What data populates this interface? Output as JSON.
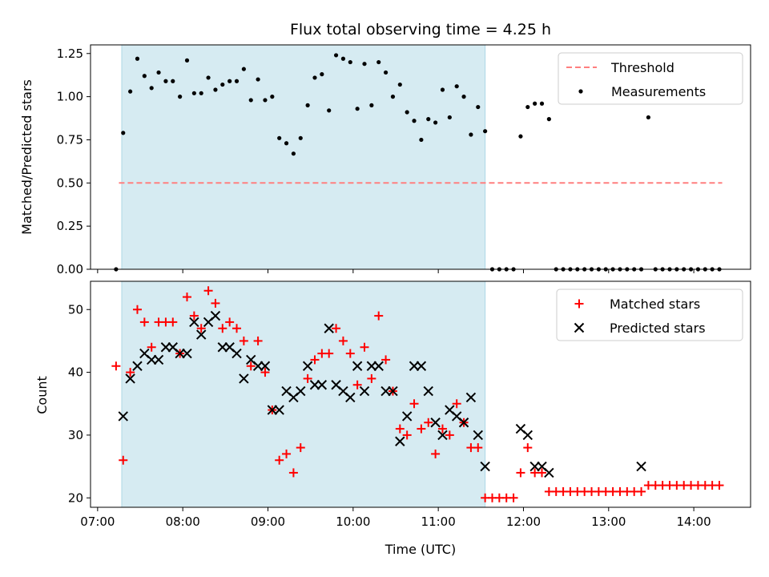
{
  "chart_data": {
    "title": "Flux total observing time = 4.25 h",
    "xlabel": "Time (UTC)",
    "x_ticks": [
      "07:00",
      "08:00",
      "09:00",
      "10:00",
      "11:00",
      "12:00",
      "13:00",
      "14:00"
    ],
    "x_range": [
      "06:55",
      "14:40"
    ],
    "shaded_interval": [
      "07:17",
      "11:33"
    ],
    "shade_color": "#add8e6",
    "panels": [
      {
        "type": "scatter",
        "ylabel": "Matched/Predicted stars",
        "ylim": [
          0,
          1.3
        ],
        "y_ticks": [
          "0.00",
          "0.25",
          "0.50",
          "0.75",
          "1.00",
          "1.25"
        ],
        "legend_position": "upper-right",
        "series": [
          {
            "name": "Threshold",
            "style": "dashed-line",
            "color": "#ff7f7f",
            "x": [
              "07:15",
              "14:20"
            ],
            "y": [
              0.5,
              0.5
            ]
          },
          {
            "name": "Measurements",
            "style": "dot",
            "color": "#000000",
            "x": [
              "07:13",
              "07:18",
              "07:23",
              "07:28",
              "07:33",
              "07:38",
              "07:43",
              "07:48",
              "07:53",
              "07:58",
              "08:03",
              "08:08",
              "08:13",
              "08:18",
              "08:23",
              "08:28",
              "08:33",
              "08:38",
              "08:43",
              "08:48",
              "08:53",
              "08:58",
              "09:03",
              "09:08",
              "09:13",
              "09:18",
              "09:23",
              "09:28",
              "09:33",
              "09:38",
              "09:43",
              "09:48",
              "09:53",
              "09:58",
              "10:03",
              "10:08",
              "10:13",
              "10:18",
              "10:23",
              "10:28",
              "10:33",
              "10:38",
              "10:43",
              "10:48",
              "10:53",
              "10:58",
              "11:03",
              "11:08",
              "11:13",
              "11:18",
              "11:23",
              "11:28",
              "11:33",
              "11:38",
              "11:43",
              "11:48",
              "11:53",
              "11:58",
              "12:03",
              "12:08",
              "12:13",
              "12:18",
              "12:23",
              "12:28",
              "12:33",
              "12:38",
              "12:43",
              "12:48",
              "12:53",
              "12:58",
              "13:03",
              "13:08",
              "13:13",
              "13:18",
              "13:23",
              "13:28",
              "13:33",
              "13:38",
              "13:43",
              "13:48",
              "13:53",
              "13:58",
              "14:03",
              "14:08",
              "14:13",
              "14:18"
            ],
            "y": [
              0.0,
              0.79,
              1.03,
              1.22,
              1.12,
              1.05,
              1.14,
              1.09,
              1.09,
              1.0,
              1.21,
              1.02,
              1.02,
              1.11,
              1.04,
              1.07,
              1.09,
              1.09,
              1.16,
              0.98,
              1.1,
              0.98,
              1.0,
              0.76,
              0.73,
              0.67,
              0.76,
              0.95,
              1.11,
              1.13,
              0.92,
              1.24,
              1.22,
              1.2,
              0.93,
              1.19,
              0.95,
              1.2,
              1.14,
              1.0,
              1.07,
              0.91,
              0.86,
              0.75,
              0.87,
              0.85,
              1.04,
              0.88,
              1.06,
              1.0,
              0.78,
              0.94,
              0.8,
              0.0,
              0.0,
              0.0,
              0.0,
              0.77,
              0.94,
              0.96,
              0.96,
              0.87,
              0.0,
              0.0,
              0.0,
              0.0,
              0.0,
              0.0,
              0.0,
              0.0,
              0.0,
              0.0,
              0.0,
              0.0,
              0.0,
              0.88,
              0.0,
              0.0,
              0.0,
              0.0,
              0.0,
              0.0,
              0.0,
              0.0,
              0.0,
              0.0
            ]
          }
        ]
      },
      {
        "type": "scatter",
        "ylabel": "Count",
        "ylim": [
          18.5,
          54.5
        ],
        "y_ticks": [
          "20",
          "30",
          "40",
          "50"
        ],
        "legend_position": "upper-right",
        "series": [
          {
            "name": "Matched stars",
            "style": "plus",
            "color": "#ff0000",
            "x": [
              "07:13",
              "07:18",
              "07:23",
              "07:28",
              "07:33",
              "07:38",
              "07:43",
              "07:48",
              "07:53",
              "07:58",
              "08:03",
              "08:08",
              "08:13",
              "08:18",
              "08:23",
              "08:28",
              "08:33",
              "08:38",
              "08:43",
              "08:48",
              "08:53",
              "08:58",
              "09:03",
              "09:08",
              "09:13",
              "09:18",
              "09:23",
              "09:28",
              "09:33",
              "09:38",
              "09:43",
              "09:48",
              "09:53",
              "09:58",
              "10:03",
              "10:08",
              "10:13",
              "10:18",
              "10:23",
              "10:28",
              "10:33",
              "10:38",
              "10:43",
              "10:48",
              "10:53",
              "10:58",
              "11:03",
              "11:08",
              "11:13",
              "11:18",
              "11:23",
              "11:28",
              "11:33",
              "11:38",
              "11:43",
              "11:48",
              "11:53",
              "11:58",
              "12:03",
              "12:08",
              "12:13",
              "12:18",
              "12:23",
              "12:28",
              "12:33",
              "12:38",
              "12:43",
              "12:48",
              "12:53",
              "12:58",
              "13:03",
              "13:08",
              "13:13",
              "13:18",
              "13:23",
              "13:28",
              "13:33",
              "13:38",
              "13:43",
              "13:48",
              "13:53",
              "13:58",
              "14:03",
              "14:08",
              "14:13",
              "14:18"
            ],
            "y": [
              41,
              26,
              40,
              50,
              48,
              44,
              48,
              48,
              48,
              43,
              52,
              49,
              47,
              53,
              51,
              47,
              48,
              47,
              45,
              41,
              45,
              40,
              34,
              26,
              27,
              24,
              28,
              39,
              42,
              43,
              43,
              47,
              45,
              43,
              38,
              44,
              39,
              49,
              42,
              37,
              31,
              30,
              35,
              31,
              32,
              27,
              31,
              30,
              35,
              32,
              28,
              28,
              20,
              20,
              20,
              20,
              20,
              24,
              28,
              24,
              24,
              21,
              21,
              21,
              21,
              21,
              21,
              21,
              21,
              21,
              21,
              21,
              21,
              21,
              21,
              22,
              22,
              22,
              22,
              22,
              22,
              22,
              22,
              22,
              22,
              22
            ]
          },
          {
            "name": "Predicted stars",
            "style": "x",
            "color": "#000000",
            "x": [
              "07:18",
              "07:23",
              "07:28",
              "07:33",
              "07:38",
              "07:43",
              "07:48",
              "07:53",
              "07:58",
              "08:03",
              "08:08",
              "08:13",
              "08:18",
              "08:23",
              "08:28",
              "08:33",
              "08:38",
              "08:43",
              "08:48",
              "08:53",
              "08:58",
              "09:03",
              "09:08",
              "09:13",
              "09:18",
              "09:23",
              "09:28",
              "09:33",
              "09:38",
              "09:43",
              "09:48",
              "09:53",
              "09:58",
              "10:03",
              "10:08",
              "10:13",
              "10:18",
              "10:23",
              "10:28",
              "10:33",
              "10:38",
              "10:43",
              "10:48",
              "10:53",
              "10:58",
              "11:03",
              "11:08",
              "11:13",
              "11:18",
              "11:23",
              "11:28",
              "11:33",
              "11:58",
              "12:03",
              "12:08",
              "12:13",
              "12:18",
              "13:23"
            ],
            "y": [
              33,
              39,
              41,
              43,
              42,
              42,
              44,
              44,
              43,
              43,
              48,
              46,
              48,
              49,
              44,
              44,
              43,
              39,
              42,
              41,
              41,
              34,
              34,
              37,
              36,
              37,
              41,
              38,
              38,
              47,
              38,
              37,
              36,
              41,
              37,
              41,
              41,
              37,
              37,
              29,
              33,
              41,
              41,
              37,
              32,
              30,
              34,
              33,
              32,
              36,
              30,
              25,
              31,
              30,
              25,
              25,
              24,
              25
            ]
          }
        ]
      }
    ]
  }
}
